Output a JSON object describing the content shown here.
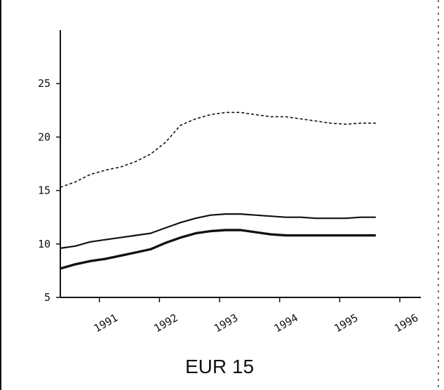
{
  "chart_data": {
    "type": "line",
    "caption": "EUR 15",
    "xlabel": "",
    "ylabel": "",
    "xlim": [
      1990.35,
      1996.35
    ],
    "ylim": [
      5,
      30
    ],
    "y_ticks": [
      5,
      10,
      15,
      20,
      25
    ],
    "y_tick_labels": [
      "5",
      "10",
      "15",
      "20",
      "25"
    ],
    "x_ticks": [
      1991,
      1992,
      1993,
      1994,
      1995,
      1996
    ],
    "x_tick_labels": [
      "1991",
      "1992",
      "1993",
      "1994",
      "1995",
      "1996"
    ],
    "grid": false,
    "legend": "none",
    "series": [
      {
        "style": "dashed",
        "x": [
          1990.35,
          1990.6,
          1990.85,
          1991.1,
          1991.35,
          1991.6,
          1991.85,
          1992.1,
          1992.35,
          1992.6,
          1992.85,
          1993.1,
          1993.35,
          1993.6,
          1993.85,
          1994.1,
          1994.35,
          1994.6,
          1994.85,
          1995.1,
          1995.35,
          1995.6
        ],
        "y": [
          15.3,
          15.8,
          16.5,
          16.9,
          17.2,
          17.7,
          18.4,
          19.5,
          21.1,
          21.7,
          22.1,
          22.3,
          22.3,
          22.1,
          21.9,
          21.9,
          21.7,
          21.5,
          21.3,
          21.2,
          21.3,
          21.3
        ]
      },
      {
        "style": "solid",
        "x": [
          1990.35,
          1990.6,
          1990.85,
          1991.1,
          1991.35,
          1991.6,
          1991.85,
          1992.1,
          1992.35,
          1992.6,
          1992.85,
          1993.1,
          1993.35,
          1993.6,
          1993.85,
          1994.1,
          1994.35,
          1994.6,
          1994.85,
          1995.1,
          1995.35,
          1995.6
        ],
        "y": [
          9.6,
          9.8,
          10.2,
          10.4,
          10.6,
          10.8,
          11.0,
          11.5,
          12.0,
          12.4,
          12.7,
          12.8,
          12.8,
          12.7,
          12.6,
          12.5,
          12.5,
          12.4,
          12.4,
          12.4,
          12.5,
          12.5
        ]
      },
      {
        "style": "solid-thick",
        "x": [
          1990.35,
          1990.6,
          1990.85,
          1991.1,
          1991.35,
          1991.6,
          1991.85,
          1992.1,
          1992.35,
          1992.6,
          1992.85,
          1993.1,
          1993.35,
          1993.6,
          1993.85,
          1994.1,
          1994.35,
          1994.6,
          1994.85,
          1995.1,
          1995.35,
          1995.6
        ],
        "y": [
          7.7,
          8.1,
          8.4,
          8.6,
          8.9,
          9.2,
          9.5,
          10.1,
          10.6,
          11.0,
          11.2,
          11.3,
          11.3,
          11.1,
          10.9,
          10.8,
          10.8,
          10.8,
          10.8,
          10.8,
          10.8,
          10.8
        ]
      }
    ]
  }
}
